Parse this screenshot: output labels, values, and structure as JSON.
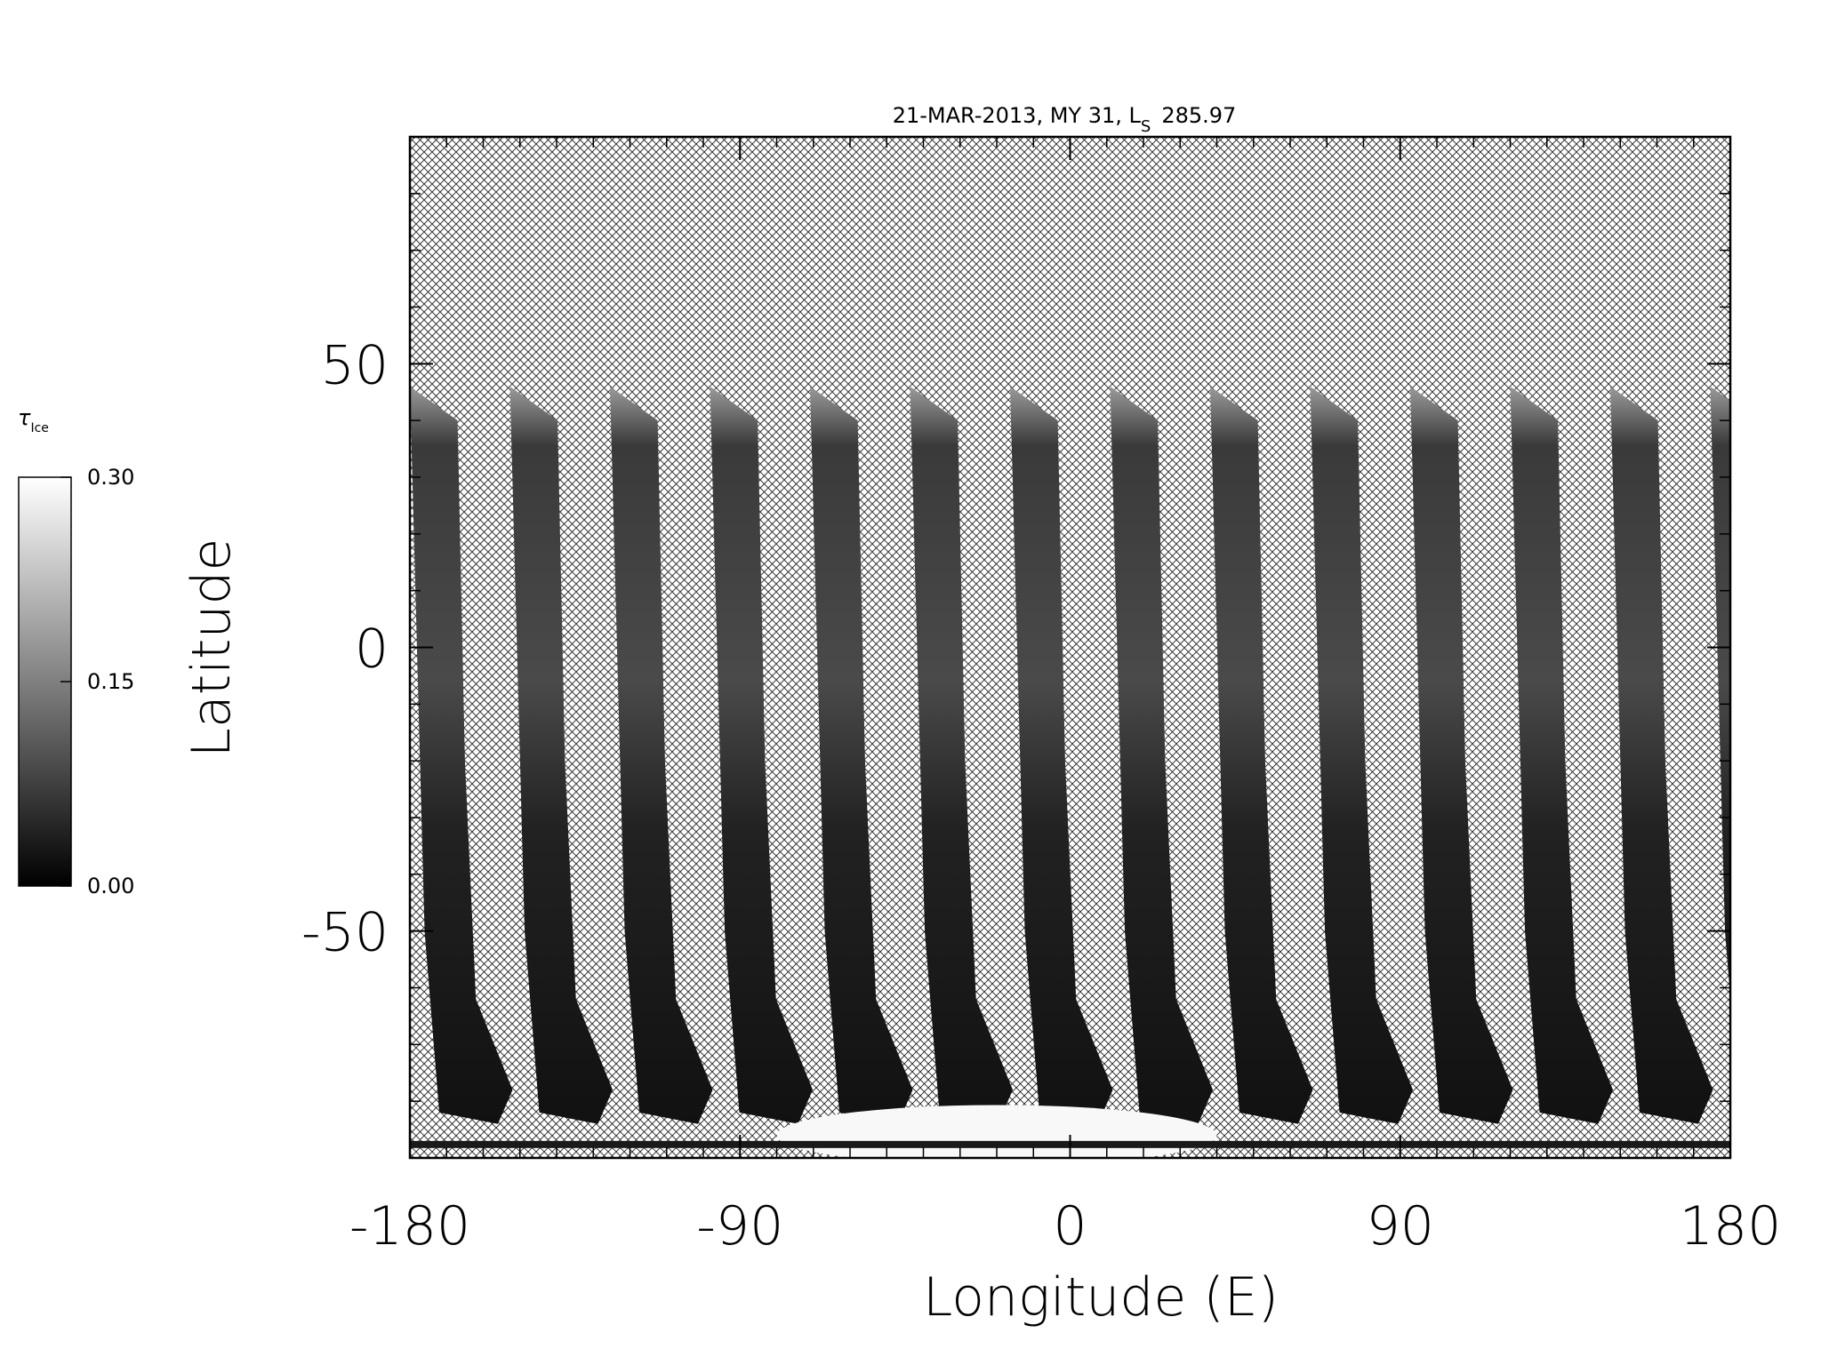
{
  "chart_data": {
    "type": "map",
    "title": "21-MAR-2013, MY 31,  L",
    "title_subscript": "S",
    "title_value": "285.97",
    "x_label": "Longitude (E)",
    "y_label": "Latitude",
    "xlim": [
      -180,
      180
    ],
    "xticks": [
      -180,
      -90,
      0,
      90,
      180
    ],
    "x_minor_step": 10,
    "ylim": [
      -90,
      90
    ],
    "yticks": [
      -50,
      0,
      50
    ],
    "y_minor_step": 10,
    "colorbar": {
      "label": "τ",
      "label_subscript": "Ice",
      "clim": [
        0,
        0.3
      ],
      "ticks": [
        {
          "value": 0,
          "label": "0.00"
        },
        {
          "value": 0.15,
          "label": "0.15"
        },
        {
          "value": 0.3,
          "label": "0.30"
        }
      ],
      "colors": [
        "#000000",
        "#ffffff"
      ]
    }
  }
}
